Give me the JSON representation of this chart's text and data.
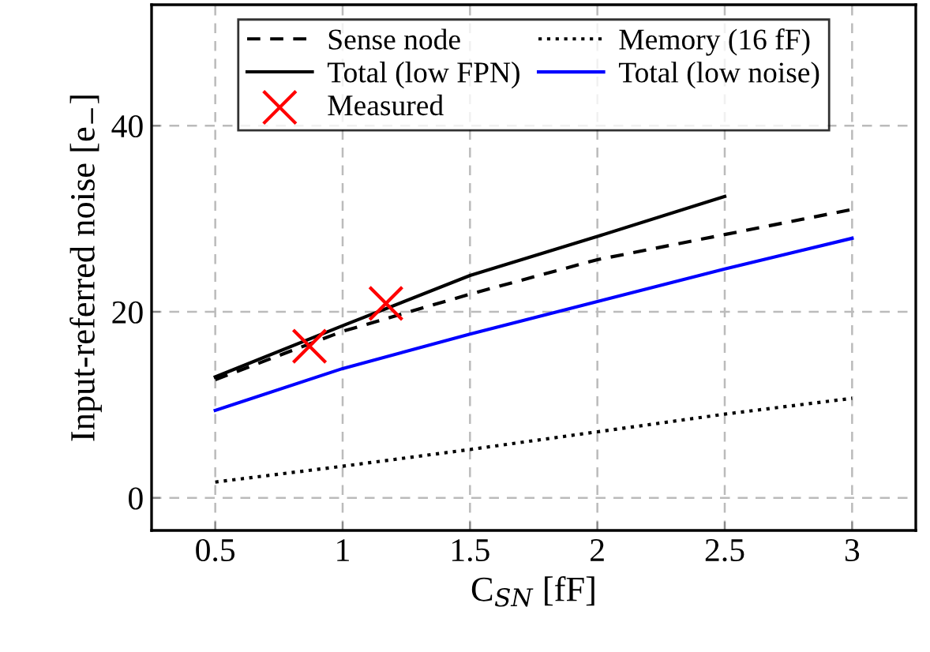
{
  "chart_data": {
    "type": "line",
    "xlabel": "C$_{SN}$ [fF]",
    "ylabel": "Input-referred noise [e$_{−}$]",
    "xlim": [
      0.25,
      3.25
    ],
    "ylim": [
      -3.5,
      53
    ],
    "xticks": [
      0.5,
      1,
      1.5,
      2,
      2.5,
      3
    ],
    "yticks": [
      0,
      20,
      40
    ],
    "grid": true,
    "legend": "top",
    "series": [
      {
        "name": "Sense node",
        "color": "#000000",
        "line_style": "dashed",
        "marker": "none",
        "x": [
          0.5,
          1,
          1.5,
          2,
          2.5,
          3
        ],
        "values": [
          12.7,
          17.9,
          21.9,
          25.6,
          28.3,
          31.0
        ]
      },
      {
        "name": "Memory (16 fF)",
        "color": "#000000",
        "line_style": "dotted",
        "marker": "none",
        "x": [
          0.5,
          1,
          1.5,
          2,
          2.5,
          3
        ],
        "values": [
          1.7,
          3.4,
          5.2,
          7.1,
          9.0,
          10.7
        ]
      },
      {
        "name": "Total (low FPN)",
        "color": "#000000",
        "line_style": "solid",
        "marker": "none",
        "x": [
          0.5,
          1,
          1.5,
          2,
          2.5
        ],
        "values": [
          13.0,
          18.5,
          23.9,
          28.1,
          32.4
        ]
      },
      {
        "name": "Total (low noise)",
        "color": "#0000ff",
        "line_style": "solid",
        "marker": "none",
        "x": [
          0.5,
          1,
          1.5,
          2,
          2.5,
          3
        ],
        "values": [
          9.4,
          13.9,
          17.6,
          21.1,
          24.6,
          27.9
        ]
      },
      {
        "name": "Measured",
        "type": "scatter",
        "color": "#ff0000",
        "marker": "cross",
        "x": [
          0.87,
          1.17
        ],
        "values": [
          16.3,
          20.9
        ]
      }
    ]
  }
}
